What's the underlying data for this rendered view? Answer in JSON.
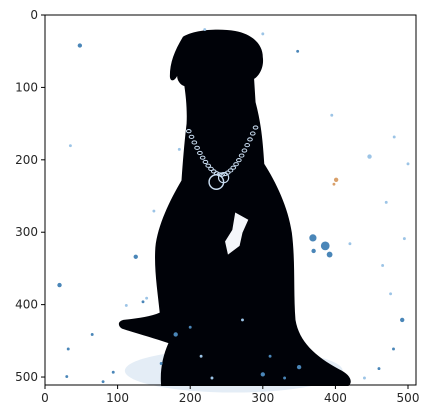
{
  "chart_data": {
    "type": "heatmap",
    "description_kind": "image-display (imshow) of a high-contrast photo of a black dog with a chain collar",
    "xlim": [
      0,
      511
    ],
    "ylim": [
      511,
      0
    ],
    "origin": "upper",
    "x_ticks": [
      0,
      100,
      200,
      300,
      400,
      500
    ],
    "y_ticks": [
      0,
      100,
      200,
      300,
      400,
      500
    ],
    "x_tick_labels": [
      "0",
      "100",
      "200",
      "300",
      "400",
      "500"
    ],
    "y_tick_labels": [
      "0",
      "100",
      "200",
      "300",
      "400",
      "500"
    ],
    "grid": false,
    "legend": "none"
  },
  "colors": {
    "background": "#ffffff",
    "silhouette": "#000208",
    "collar": "#c8dcf0",
    "speckle": "#4a86b8",
    "light_speckle": "#9cc4e6",
    "tan_speckle": "#d9a06a",
    "ground_tint": "#dde8f4",
    "axis": "#000000"
  }
}
